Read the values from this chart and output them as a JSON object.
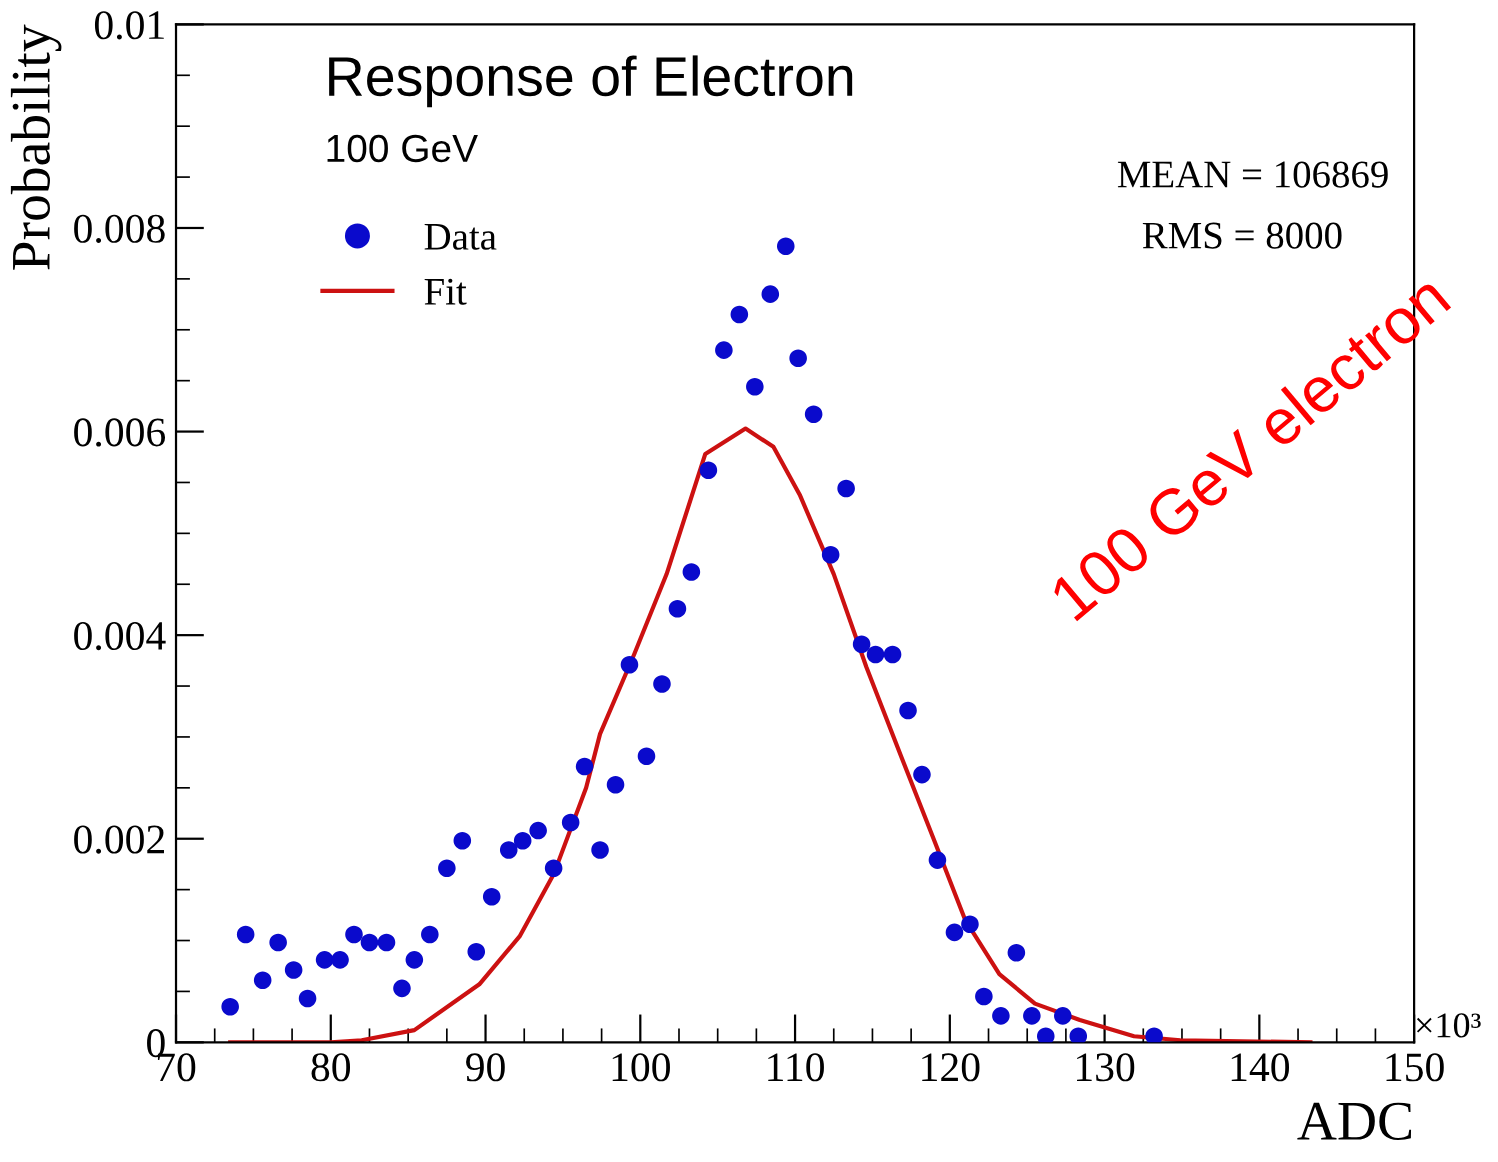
{
  "chart_data": {
    "type": "scatter",
    "title": "Response of Electron",
    "subtitle": "100 GeV",
    "xlabel": "ADC",
    "ylabel": "Probability",
    "xlim": [
      70,
      150
    ],
    "xticks": [
      70,
      80,
      90,
      100,
      110,
      120,
      130,
      140,
      150
    ],
    "ylim": [
      0,
      0.01
    ],
    "yticks": [
      0,
      0.002,
      0.004,
      0.006,
      0.008,
      0.01
    ],
    "legend": "top left",
    "marker": "circle",
    "grid": false,
    "annotations": [
      "MEAN = 106869",
      "RMS = 8000",
      "100 GeV electron",
      "×10³"
    ],
    "series": [
      {
        "name": "Data",
        "color": "#0a0acc",
        "x": [
          73.5,
          74.5,
          75.6,
          76.6,
          77.6,
          78.5,
          79.6,
          80.6,
          81.5,
          82.5,
          83.6,
          84.6,
          85.4,
          86.4,
          87.5,
          88.5,
          89.4,
          90.4,
          91.5,
          92.4,
          93.4,
          94.4,
          95.5,
          96.4,
          97.4,
          98.4,
          99.3,
          100.4,
          101.4,
          102.4,
          103.3,
          104.4,
          105.4,
          106.4,
          107.4,
          108.4,
          109.4,
          110.2,
          111.2,
          112.3,
          113.3,
          114.3,
          115.2,
          116.3,
          117.3,
          118.2,
          119.2,
          120.3,
          121.3,
          122.2,
          123.3,
          124.3,
          125.3,
          126.2,
          127.3,
          128.3,
          133.2
        ],
        "values": [
          0.00035,
          0.00106,
          0.00061,
          0.00098,
          0.00071,
          0.00043,
          0.00081,
          0.00081,
          0.00106,
          0.00098,
          0.00098,
          0.00053,
          0.00081,
          0.00106,
          0.00171,
          0.00198,
          0.00089,
          0.00143,
          0.00189,
          0.00198,
          0.00208,
          0.00171,
          0.00216,
          0.00271,
          0.00189,
          0.00253,
          0.00371,
          0.00281,
          0.00352,
          0.00426,
          0.00462,
          0.00562,
          0.0068,
          0.00715,
          0.00644,
          0.00735,
          0.00782,
          0.00672,
          0.00617,
          0.00479,
          0.00544,
          0.00391,
          0.00381,
          0.00381,
          0.00326,
          0.00263,
          0.00179,
          0.00108,
          0.00116,
          0.00045,
          0.00026,
          0.00088,
          0.00026,
          6e-05,
          0.00026,
          6e-05,
          6e-05
        ]
      },
      {
        "name": "Fit",
        "type": "line",
        "color": "#cc1111",
        "marker": "none",
        "x": [
          73.5,
          80,
          82,
          85.4,
          89.6,
          92.2,
          94.4,
          96.5,
          97.4,
          99.6,
          101.7,
          104.2,
          106.8,
          108.6,
          110.3,
          112.5,
          114.6,
          116.8,
          119,
          121,
          123.2,
          125.5,
          128.4,
          131.9,
          134.9,
          143.3
        ],
        "values": [
          0,
          0,
          2e-05,
          0.00012,
          0.00057,
          0.00104,
          0.00165,
          0.0025,
          0.00303,
          0.00381,
          0.0046,
          0.00578,
          0.00603,
          0.00585,
          0.00538,
          0.0046,
          0.00369,
          0.00283,
          0.00198,
          0.0012,
          0.00067,
          0.00038,
          0.00022,
          6e-05,
          2e-05,
          0
        ]
      }
    ]
  }
}
